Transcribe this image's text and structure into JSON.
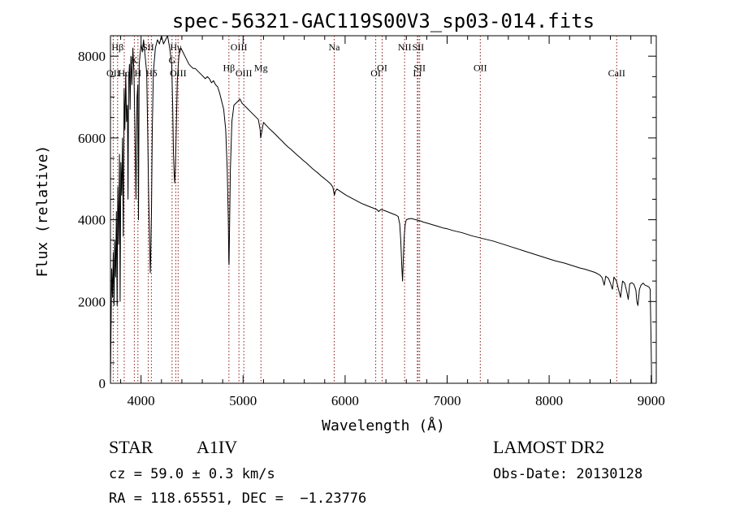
{
  "chart_data": {
    "type": "line",
    "title": "spec-56321-GAC119S00V3_sp03-014.fits",
    "xlabel": "Wavelength (Å)",
    "ylabel": "Flux (relative)",
    "xlim": [
      3700,
      9050
    ],
    "ylim": [
      0,
      8500
    ],
    "x_ticks": [
      4000,
      5000,
      6000,
      7000,
      8000,
      9000
    ],
    "y_ticks": [
      0,
      2000,
      4000,
      6000,
      8000
    ],
    "grid": false,
    "series": [
      {
        "points": [
          [
            3700,
            0
          ],
          [
            3705,
            1200
          ],
          [
            3712,
            2800
          ],
          [
            3720,
            2100
          ],
          [
            3728,
            3200
          ],
          [
            3735,
            1900
          ],
          [
            3742,
            3500
          ],
          [
            3750,
            2600
          ],
          [
            3758,
            4200
          ],
          [
            3765,
            1900
          ],
          [
            3772,
            4800
          ],
          [
            3780,
            3400
          ],
          [
            3788,
            5600
          ],
          [
            3795,
            2000
          ],
          [
            3802,
            5400
          ],
          [
            3810,
            4600
          ],
          [
            3818,
            6000
          ],
          [
            3826,
            3600
          ],
          [
            3834,
            7200
          ],
          [
            3842,
            6200
          ],
          [
            3850,
            7600
          ],
          [
            3858,
            6400
          ],
          [
            3866,
            6800
          ],
          [
            3872,
            4500
          ],
          [
            3878,
            7400
          ],
          [
            3886,
            7800
          ],
          [
            3893,
            6700
          ],
          [
            3900,
            8000
          ],
          [
            3910,
            7300
          ],
          [
            3920,
            8200
          ],
          [
            3930,
            7600
          ],
          [
            3940,
            6300
          ],
          [
            3950,
            4500
          ],
          [
            3960,
            7000
          ],
          [
            3968,
            7300
          ],
          [
            3975,
            4000
          ],
          [
            3982,
            7800
          ],
          [
            3992,
            8100
          ],
          [
            4000,
            8300
          ],
          [
            4012,
            8100
          ],
          [
            4025,
            8400
          ],
          [
            4040,
            8000
          ],
          [
            4055,
            7600
          ],
          [
            4065,
            6200
          ],
          [
            4075,
            4500
          ],
          [
            4085,
            3300
          ],
          [
            4090,
            2700
          ],
          [
            4095,
            3100
          ],
          [
            4102,
            4200
          ],
          [
            4110,
            6200
          ],
          [
            4120,
            7600
          ],
          [
            4140,
            8200
          ],
          [
            4160,
            8400
          ],
          [
            4180,
            8300
          ],
          [
            4200,
            8500
          ],
          [
            4220,
            8300
          ],
          [
            4240,
            8400
          ],
          [
            4260,
            8500
          ],
          [
            4280,
            8200
          ],
          [
            4300,
            7800
          ],
          [
            4310,
            6800
          ],
          [
            4318,
            5600
          ],
          [
            4325,
            5100
          ],
          [
            4330,
            4900
          ],
          [
            4336,
            5200
          ],
          [
            4345,
            6200
          ],
          [
            4355,
            7400
          ],
          [
            4370,
            8000
          ],
          [
            4390,
            8200
          ],
          [
            4410,
            8100
          ],
          [
            4430,
            8000
          ],
          [
            4450,
            7900
          ],
          [
            4470,
            7800
          ],
          [
            4490,
            7750
          ],
          [
            4510,
            7700
          ],
          [
            4530,
            7700
          ],
          [
            4550,
            7650
          ],
          [
            4570,
            7600
          ],
          [
            4590,
            7550
          ],
          [
            4610,
            7500
          ],
          [
            4630,
            7450
          ],
          [
            4650,
            7500
          ],
          [
            4670,
            7450
          ],
          [
            4690,
            7350
          ],
          [
            4710,
            7400
          ],
          [
            4730,
            7300
          ],
          [
            4750,
            7250
          ],
          [
            4770,
            7100
          ],
          [
            4790,
            6900
          ],
          [
            4810,
            6700
          ],
          [
            4830,
            6200
          ],
          [
            4845,
            5200
          ],
          [
            4855,
            4000
          ],
          [
            4860,
            3000
          ],
          [
            4862,
            2900
          ],
          [
            4866,
            3600
          ],
          [
            4875,
            5200
          ],
          [
            4890,
            6400
          ],
          [
            4910,
            6800
          ],
          [
            4930,
            6850
          ],
          [
            4950,
            6900
          ],
          [
            4970,
            6950
          ],
          [
            4990,
            6850
          ],
          [
            5010,
            6800
          ],
          [
            5030,
            6750
          ],
          [
            5050,
            6700
          ],
          [
            5070,
            6650
          ],
          [
            5090,
            6600
          ],
          [
            5110,
            6550
          ],
          [
            5130,
            6500
          ],
          [
            5150,
            6450
          ],
          [
            5167,
            6200
          ],
          [
            5172,
            6000
          ],
          [
            5183,
            6150
          ],
          [
            5200,
            6380
          ],
          [
            5230,
            6300
          ],
          [
            5260,
            6220
          ],
          [
            5290,
            6150
          ],
          [
            5320,
            6080
          ],
          [
            5350,
            6000
          ],
          [
            5380,
            5930
          ],
          [
            5410,
            5850
          ],
          [
            5440,
            5780
          ],
          [
            5470,
            5720
          ],
          [
            5500,
            5650
          ],
          [
            5530,
            5580
          ],
          [
            5560,
            5520
          ],
          [
            5590,
            5450
          ],
          [
            5620,
            5390
          ],
          [
            5650,
            5320
          ],
          [
            5680,
            5250
          ],
          [
            5710,
            5190
          ],
          [
            5740,
            5130
          ],
          [
            5770,
            5060
          ],
          [
            5800,
            5000
          ],
          [
            5830,
            4940
          ],
          [
            5860,
            4870
          ],
          [
            5880,
            4800
          ],
          [
            5895,
            4600
          ],
          [
            5905,
            4700
          ],
          [
            5920,
            4750
          ],
          [
            5950,
            4700
          ],
          [
            5980,
            4650
          ],
          [
            6010,
            4600
          ],
          [
            6040,
            4560
          ],
          [
            6070,
            4520
          ],
          [
            6100,
            4480
          ],
          [
            6130,
            4440
          ],
          [
            6160,
            4400
          ],
          [
            6190,
            4370
          ],
          [
            6220,
            4340
          ],
          [
            6250,
            4310
          ],
          [
            6280,
            4280
          ],
          [
            6310,
            4250
          ],
          [
            6330,
            4200
          ],
          [
            6350,
            4250
          ],
          [
            6380,
            4230
          ],
          [
            6410,
            4200
          ],
          [
            6440,
            4170
          ],
          [
            6470,
            4140
          ],
          [
            6500,
            4110
          ],
          [
            6520,
            4080
          ],
          [
            6535,
            3900
          ],
          [
            6545,
            3500
          ],
          [
            6555,
            2900
          ],
          [
            6563,
            2500
          ],
          [
            6570,
            3000
          ],
          [
            6580,
            3600
          ],
          [
            6590,
            3900
          ],
          [
            6600,
            4000
          ],
          [
            6620,
            4020
          ],
          [
            6650,
            4030
          ],
          [
            6680,
            4010
          ],
          [
            6710,
            3990
          ],
          [
            6740,
            3970
          ],
          [
            6770,
            3940
          ],
          [
            6800,
            3920
          ],
          [
            6840,
            3890
          ],
          [
            6880,
            3860
          ],
          [
            6920,
            3830
          ],
          [
            6960,
            3800
          ],
          [
            7000,
            3780
          ],
          [
            7050,
            3740
          ],
          [
            7100,
            3710
          ],
          [
            7150,
            3680
          ],
          [
            7200,
            3640
          ],
          [
            7250,
            3600
          ],
          [
            7300,
            3570
          ],
          [
            7350,
            3540
          ],
          [
            7400,
            3510
          ],
          [
            7450,
            3480
          ],
          [
            7500,
            3440
          ],
          [
            7550,
            3400
          ],
          [
            7600,
            3360
          ],
          [
            7650,
            3320
          ],
          [
            7700,
            3280
          ],
          [
            7750,
            3240
          ],
          [
            7800,
            3200
          ],
          [
            7850,
            3160
          ],
          [
            7900,
            3120
          ],
          [
            7950,
            3080
          ],
          [
            8000,
            3040
          ],
          [
            8050,
            3000
          ],
          [
            8100,
            2970
          ],
          [
            8150,
            2940
          ],
          [
            8200,
            2900
          ],
          [
            8250,
            2860
          ],
          [
            8300,
            2820
          ],
          [
            8350,
            2790
          ],
          [
            8400,
            2750
          ],
          [
            8450,
            2710
          ],
          [
            8480,
            2670
          ],
          [
            8500,
            2640
          ],
          [
            8520,
            2580
          ],
          [
            8540,
            2400
          ],
          [
            8555,
            2620
          ],
          [
            8580,
            2570
          ],
          [
            8600,
            2450
          ],
          [
            8620,
            2300
          ],
          [
            8635,
            2600
          ],
          [
            8660,
            2500
          ],
          [
            8680,
            2300
          ],
          [
            8700,
            2100
          ],
          [
            8720,
            2500
          ],
          [
            8740,
            2450
          ],
          [
            8760,
            2250
          ],
          [
            8775,
            2050
          ],
          [
            8790,
            2430
          ],
          [
            8810,
            2460
          ],
          [
            8830,
            2420
          ],
          [
            8850,
            2280
          ],
          [
            8860,
            2000
          ],
          [
            8870,
            1900
          ],
          [
            8885,
            2300
          ],
          [
            8900,
            2400
          ],
          [
            8920,
            2450
          ],
          [
            8940,
            2400
          ],
          [
            8960,
            2380
          ],
          [
            8980,
            2350
          ],
          [
            8990,
            2300
          ],
          [
            9000,
            900
          ],
          [
            9005,
            0
          ]
        ]
      }
    ],
    "lines": [
      {
        "label": "Hβ",
        "x": 3770,
        "row": 0
      },
      {
        "label": "OII",
        "x": 3727,
        "row": 1
      },
      {
        "label": "Hα",
        "x": 3835,
        "row": 1
      },
      {
        "label": "K",
        "x": 3934,
        "row": 0.5
      },
      {
        "label": "SII",
        "x": 4070,
        "row": 0
      },
      {
        "label": "H",
        "x": 3969,
        "row": 1
      },
      {
        "label": "Hδ",
        "x": 4101,
        "row": 1
      },
      {
        "label": "Hγ",
        "x": 4340,
        "row": 0
      },
      {
        "label": "G",
        "x": 4304,
        "row": 0.5
      },
      {
        "label": "OIII",
        "x": 4363,
        "row": 1
      },
      {
        "label": "OIII",
        "x": 4959,
        "row": 0
      },
      {
        "label": "Hβ",
        "x": 4861,
        "row": 0.8
      },
      {
        "label": "Mg",
        "x": 5175,
        "row": 0.8
      },
      {
        "label": "OIII",
        "x": 5007,
        "row": 1
      },
      {
        "label": "Na",
        "x": 5893,
        "row": 0
      },
      {
        "label": "NII",
        "x": 6583,
        "row": 0
      },
      {
        "label": "SII",
        "x": 6716,
        "row": 0
      },
      {
        "label": "OI",
        "x": 6363,
        "row": 0.8
      },
      {
        "label": "SII",
        "x": 6731,
        "row": 0.8
      },
      {
        "label": "OII",
        "x": 7325,
        "row": 0.8
      },
      {
        "label": "OI",
        "x": 6300,
        "row": 1
      },
      {
        "label": "Li",
        "x": 6708,
        "row": 1
      },
      {
        "label": "CaII",
        "x": 8662,
        "row": 1
      }
    ]
  },
  "info": {
    "object_class": "STAR",
    "subclass": "A1IV",
    "survey": "LAMOST DR2",
    "cz": "cz = 59.0 ± 0.3 km/s",
    "obs_date": "Obs-Date: 20130128",
    "coords": "RA = 118.65551, DEC =  −1.23776"
  }
}
